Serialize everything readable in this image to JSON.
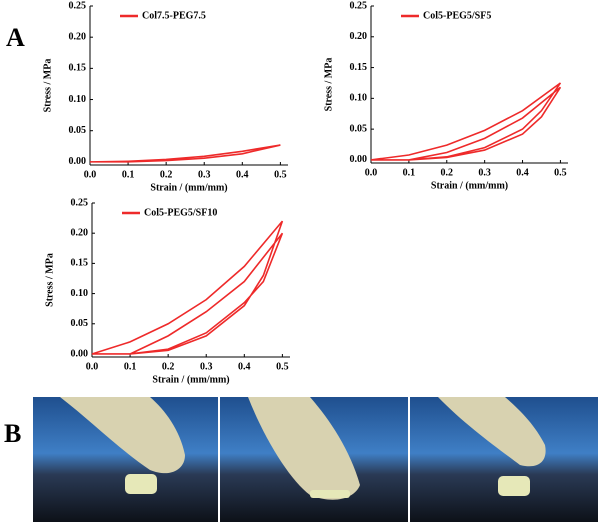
{
  "panel_labels": [
    "A",
    "B"
  ],
  "chart_data": [
    {
      "type": "line",
      "xlabel": "Strain / (mm/mm)",
      "ylabel": "Stress / MPa",
      "x": [
        0,
        0.1,
        0.2,
        0.3,
        0.4,
        0.5,
        0.4,
        0.3,
        0.2,
        0.1,
        0
      ],
      "series": [
        {
          "name": "Col7.5-PEG7.5",
          "color": "#ee2a2a",
          "values": [
            0,
            0.001,
            0.004,
            0.009,
            0.017,
            0.027,
            0.013,
            0.006,
            0.002,
            0,
            0
          ]
        }
      ],
      "xlim": [
        0,
        0.52
      ],
      "ylim": [
        -0.005,
        0.25
      ],
      "xticks": [
        {
          "value": 0,
          "label": "0.0"
        },
        0.1,
        0.2,
        0.3,
        0.4,
        0.5
      ],
      "yticks": [
        {
          "value": 0,
          "label": "0.00"
        },
        {
          "value": 0.05,
          "label": "0.05"
        },
        {
          "value": 0.1,
          "label": "0.10"
        },
        {
          "value": 0.15,
          "label": "0.15"
        },
        {
          "value": 0.2,
          "label": "0.20"
        },
        {
          "value": 0.25,
          "label": "0.25"
        }
      ]
    },
    {
      "type": "line",
      "xlabel": "Strain / (mm/mm)",
      "ylabel": "Stress / MPa",
      "x": [
        0,
        0.1,
        0.2,
        0.3,
        0.4,
        0.5,
        0.45,
        0.4,
        0.3,
        0.2,
        0.1,
        0.2,
        0.3,
        0.4,
        0.5,
        0.45,
        0.4,
        0.3,
        0.2,
        0.1,
        0
      ],
      "series": [
        {
          "name": "Col5-PEG5/SF5",
          "color": "#ee2a2a",
          "values": [
            0,
            0.008,
            0.024,
            0.048,
            0.08,
            0.125,
            0.08,
            0.05,
            0.02,
            0.005,
            0,
            0.012,
            0.035,
            0.068,
            0.118,
            0.07,
            0.042,
            0.016,
            0.004,
            0,
            0
          ]
        }
      ],
      "xlim": [
        0,
        0.52
      ],
      "ylim": [
        -0.005,
        0.25
      ],
      "xticks": [
        {
          "value": 0,
          "label": "0.0"
        },
        0.1,
        0.2,
        0.3,
        0.4,
        0.5
      ],
      "yticks": [
        {
          "value": 0,
          "label": "0.00"
        },
        {
          "value": 0.05,
          "label": "0.05"
        },
        {
          "value": 0.1,
          "label": "0.10"
        },
        {
          "value": 0.15,
          "label": "0.15"
        },
        {
          "value": 0.2,
          "label": "0.20"
        },
        {
          "value": 0.25,
          "label": "0.25"
        }
      ]
    },
    {
      "type": "line",
      "xlabel": "Strain / (mm/mm)",
      "ylabel": "Stress / MPa",
      "x": [
        0,
        0.1,
        0.2,
        0.3,
        0.4,
        0.5,
        0.45,
        0.4,
        0.3,
        0.2,
        0.1,
        0.2,
        0.3,
        0.4,
        0.5,
        0.45,
        0.4,
        0.3,
        0.2,
        0.1,
        0
      ],
      "series": [
        {
          "name": "Col5-PEG5/SF10",
          "color": "#ee2a2a",
          "values": [
            0,
            0.02,
            0.05,
            0.09,
            0.145,
            0.22,
            0.13,
            0.08,
            0.03,
            0.006,
            0,
            0.03,
            0.07,
            0.12,
            0.2,
            0.12,
            0.085,
            0.035,
            0.008,
            0,
            0
          ]
        }
      ],
      "xlim": [
        0,
        0.52
      ],
      "ylim": [
        -0.005,
        0.25
      ],
      "xticks": [
        {
          "value": 0,
          "label": "0.0"
        },
        0.1,
        0.2,
        0.3,
        0.4,
        0.5
      ],
      "yticks": [
        {
          "value": 0,
          "label": "0.00"
        },
        {
          "value": 0.05,
          "label": "0.05"
        },
        {
          "value": 0.1,
          "label": "0.10"
        },
        {
          "value": 0.15,
          "label": "0.15"
        },
        {
          "value": 0.2,
          "label": "0.20"
        },
        {
          "value": 0.25,
          "label": "0.25"
        }
      ]
    }
  ]
}
